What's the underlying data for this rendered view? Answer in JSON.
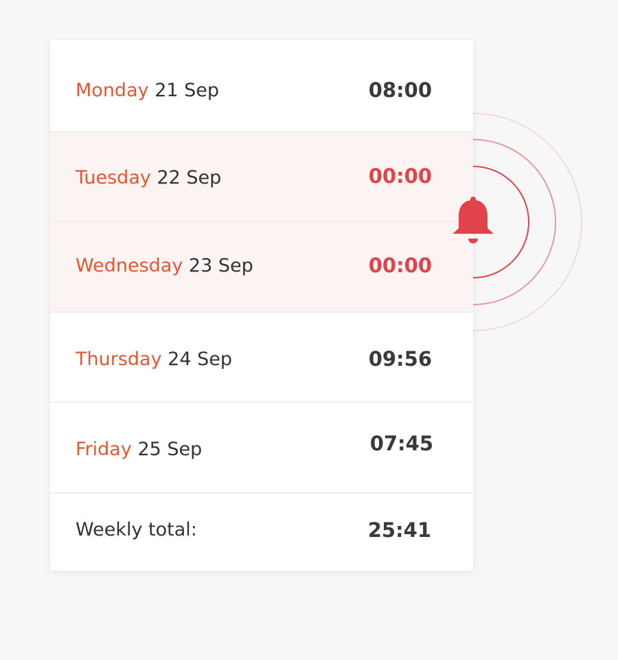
{
  "days": [
    {
      "name": "Monday",
      "date": "21 Sep",
      "time": "08:00",
      "alert": false
    },
    {
      "name": "Tuesday",
      "date": "22 Sep",
      "time": "00:00",
      "alert": true
    },
    {
      "name": "Wednesday",
      "date": "23 Sep",
      "time": "00:00",
      "alert": true
    },
    {
      "name": "Thursday",
      "date": "24 Sep",
      "time": "09:56",
      "alert": false
    },
    {
      "name": "Friday",
      "date": "25 Sep",
      "time": "07:45",
      "alert": false
    }
  ],
  "total": {
    "label": "Weekly total:",
    "time": "25:41"
  },
  "icons": {
    "alert": "bell-icon"
  },
  "colors": {
    "day_name": "#e5572f",
    "alert_time": "#e0444a",
    "alert_row": "#fcf3f3",
    "bell": "#e0444a"
  }
}
